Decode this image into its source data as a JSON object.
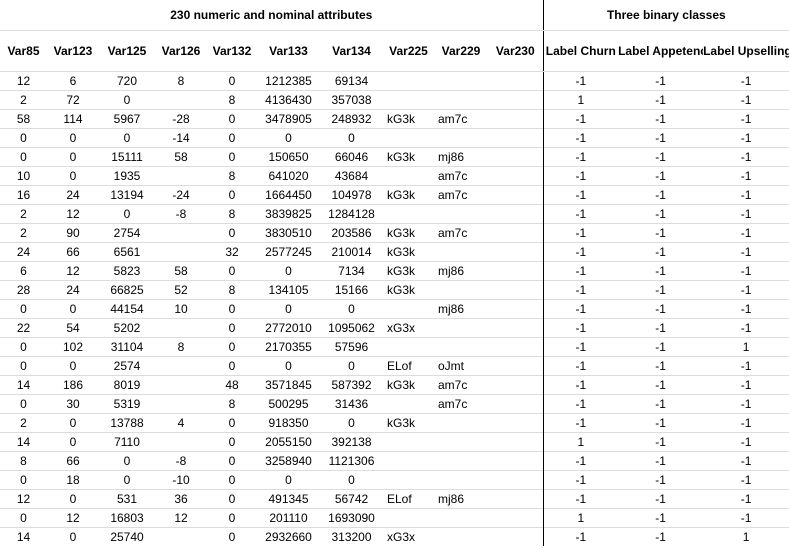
{
  "groups": {
    "numeric": "230 numeric and nominal attributes",
    "classes": "Three binary classes"
  },
  "columns": [
    "Var85",
    "Var123",
    "Var125",
    "Var126",
    "Var132",
    "Var133",
    "Var134",
    "Var225",
    "Var229",
    "Var230",
    "Label Churn",
    "Label Appetency",
    "Label Upselling"
  ],
  "rows": [
    [
      "12",
      "6",
      "720",
      "8",
      "0",
      "1212385",
      "69134",
      "",
      "",
      "",
      "-1",
      "-1",
      "-1"
    ],
    [
      "2",
      "72",
      "0",
      "",
      "8",
      "4136430",
      "357038",
      "",
      "",
      "",
      "1",
      "-1",
      "-1"
    ],
    [
      "58",
      "114",
      "5967",
      "-28",
      "0",
      "3478905",
      "248932",
      "kG3k",
      "am7c",
      "",
      "-1",
      "-1",
      "-1"
    ],
    [
      "0",
      "0",
      "0",
      "-14",
      "0",
      "0",
      "0",
      "",
      "",
      "",
      "-1",
      "-1",
      "-1"
    ],
    [
      "0",
      "0",
      "15111",
      "58",
      "0",
      "150650",
      "66046",
      "kG3k",
      "mj86",
      "",
      "-1",
      "-1",
      "-1"
    ],
    [
      "10",
      "0",
      "1935",
      "",
      "8",
      "641020",
      "43684",
      "",
      "am7c",
      "",
      "-1",
      "-1",
      "-1"
    ],
    [
      "16",
      "24",
      "13194",
      "-24",
      "0",
      "1664450",
      "104978",
      "kG3k",
      "am7c",
      "",
      "-1",
      "-1",
      "-1"
    ],
    [
      "2",
      "12",
      "0",
      "-8",
      "8",
      "3839825",
      "1284128",
      "",
      "",
      "",
      "-1",
      "-1",
      "-1"
    ],
    [
      "2",
      "90",
      "2754",
      "",
      "0",
      "3830510",
      "203586",
      "kG3k",
      "am7c",
      "",
      "-1",
      "-1",
      "-1"
    ],
    [
      "24",
      "66",
      "6561",
      "",
      "32",
      "2577245",
      "210014",
      "kG3k",
      "",
      "",
      "-1",
      "-1",
      "-1"
    ],
    [
      "6",
      "12",
      "5823",
      "58",
      "0",
      "0",
      "7134",
      "kG3k",
      "mj86",
      "",
      "-1",
      "-1",
      "-1"
    ],
    [
      "28",
      "24",
      "66825",
      "52",
      "8",
      "134105",
      "15166",
      "kG3k",
      "",
      "",
      "-1",
      "-1",
      "-1"
    ],
    [
      "0",
      "0",
      "44154",
      "10",
      "0",
      "0",
      "0",
      "",
      "mj86",
      "",
      "-1",
      "-1",
      "-1"
    ],
    [
      "22",
      "54",
      "5202",
      "",
      "0",
      "2772010",
      "1095062",
      "xG3x",
      "",
      "",
      "-1",
      "-1",
      "-1"
    ],
    [
      "0",
      "102",
      "31104",
      "8",
      "0",
      "2170355",
      "57596",
      "",
      "",
      "",
      "-1",
      "-1",
      "1"
    ],
    [
      "0",
      "0",
      "2574",
      "",
      "0",
      "0",
      "0",
      "ELof",
      "oJmt",
      "",
      "-1",
      "-1",
      "-1"
    ],
    [
      "14",
      "186",
      "8019",
      "",
      "48",
      "3571845",
      "587392",
      "kG3k",
      "am7c",
      "",
      "-1",
      "-1",
      "-1"
    ],
    [
      "0",
      "30",
      "5319",
      "",
      "8",
      "500295",
      "31436",
      "",
      "am7c",
      "",
      "-1",
      "-1",
      "-1"
    ],
    [
      "2",
      "0",
      "13788",
      "4",
      "0",
      "918350",
      "0",
      "kG3k",
      "",
      "",
      "-1",
      "-1",
      "-1"
    ],
    [
      "14",
      "0",
      "7110",
      "",
      "0",
      "2055150",
      "392138",
      "",
      "",
      "",
      "1",
      "-1",
      "-1"
    ],
    [
      "8",
      "66",
      "0",
      "-8",
      "0",
      "3258940",
      "1121306",
      "",
      "",
      "",
      "-1",
      "-1",
      "-1"
    ],
    [
      "0",
      "18",
      "0",
      "-10",
      "0",
      "0",
      "0",
      "",
      "",
      "",
      "-1",
      "-1",
      "-1"
    ],
    [
      "12",
      "0",
      "531",
      "36",
      "0",
      "491345",
      "56742",
      "ELof",
      "mj86",
      "",
      "-1",
      "-1",
      "-1"
    ],
    [
      "0",
      "12",
      "16803",
      "12",
      "0",
      "201110",
      "1693090",
      "",
      "",
      "",
      "1",
      "-1",
      "-1"
    ],
    [
      "14",
      "0",
      "25740",
      "",
      "0",
      "2932660",
      "313200",
      "xG3x",
      "",
      "",
      "-1",
      "-1",
      "1"
    ]
  ]
}
